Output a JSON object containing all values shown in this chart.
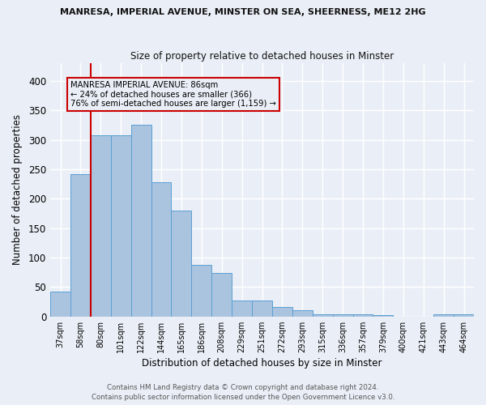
{
  "title1": "MANRESA, IMPERIAL AVENUE, MINSTER ON SEA, SHEERNESS, ME12 2HG",
  "title2": "Size of property relative to detached houses in Minster",
  "xlabel": "Distribution of detached houses by size in Minster",
  "ylabel": "Number of detached properties",
  "footnote1": "Contains HM Land Registry data © Crown copyright and database right 2024.",
  "footnote2": "Contains public sector information licensed under the Open Government Licence v3.0.",
  "bar_labels": [
    "37sqm",
    "58sqm",
    "80sqm",
    "101sqm",
    "122sqm",
    "144sqm",
    "165sqm",
    "186sqm",
    "208sqm",
    "229sqm",
    "251sqm",
    "272sqm",
    "293sqm",
    "315sqm",
    "336sqm",
    "357sqm",
    "379sqm",
    "400sqm",
    "421sqm",
    "443sqm",
    "464sqm"
  ],
  "bar_values": [
    42,
    242,
    307,
    307,
    325,
    228,
    180,
    87,
    74,
    27,
    27,
    16,
    11,
    4,
    4,
    4,
    2,
    0,
    0,
    4,
    4
  ],
  "bar_color": "#aac4e0",
  "bar_edge_color": "#5a9fd4",
  "background_color": "#eaeff7",
  "grid_color": "#ffffff",
  "property_line_index": 2,
  "annotation_text_line1": "MANRESA IMPERIAL AVENUE: 86sqm",
  "annotation_text_line2": "← 24% of detached houses are smaller (366)",
  "annotation_text_line3": "76% of semi-detached houses are larger (1,159) →",
  "red_line_color": "#cc0000",
  "annotation_box_edge": "#cc0000",
  "ylim": [
    0,
    430
  ],
  "yticks": [
    0,
    50,
    100,
    150,
    200,
    250,
    300,
    350,
    400
  ]
}
